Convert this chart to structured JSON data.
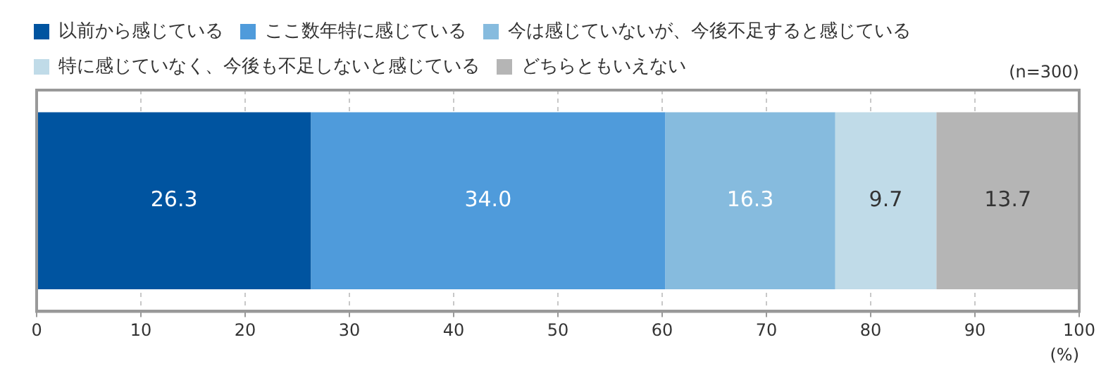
{
  "chart_data": {
    "type": "bar",
    "orientation": "horizontal",
    "stacked": true,
    "categories": [
      null
    ],
    "series": [
      {
        "name": "以前から感じている",
        "color": "#0054a0",
        "values": [
          26.3
        ]
      },
      {
        "name": "ここ数年特に感じている",
        "color": "#4f9bdb",
        "values": [
          34.0
        ]
      },
      {
        "name": "今は感じていないが、今後不足すると感じている",
        "color": "#86bbde",
        "values": [
          16.3
        ]
      },
      {
        "name": "特に感じていなく、今後も不足しないと感じている",
        "color": "#c0dbe8",
        "values": [
          9.7
        ]
      },
      {
        "name": "どちらともいえない",
        "color": "#b5b5b5",
        "values": [
          13.7
        ]
      }
    ],
    "xlim": [
      0,
      100
    ],
    "xticks": [
      0,
      10,
      20,
      30,
      40,
      50,
      60,
      70,
      80,
      90,
      100
    ],
    "xlabel": "(%)",
    "annotations": [
      "(n=300)"
    ],
    "grid": "x",
    "legend": "top left",
    "value_labels": [
      [
        "26.3"
      ],
      [
        "34.0"
      ],
      [
        "16.3"
      ],
      [
        "9.7"
      ],
      [
        "13.7"
      ]
    ]
  }
}
